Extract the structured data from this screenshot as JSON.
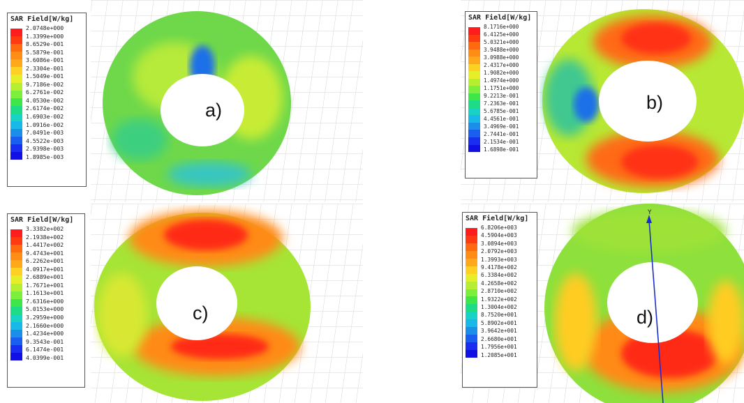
{
  "colors": {
    "scale": [
      "#ff1c1c",
      "#ff3a10",
      "#ff6a10",
      "#ff8c14",
      "#ffa81c",
      "#ffd024",
      "#e6ee2a",
      "#b6ee32",
      "#7cee3c",
      "#3ee64a",
      "#1edc86",
      "#18d2c4",
      "#18b8e8",
      "#1a8ee8",
      "#1a5ef0",
      "#1a2ef2",
      "#1010e4"
    ]
  },
  "panels": [
    {
      "label": "a)",
      "legend_title": "SAR Field[W/kg]",
      "values": [
        "2.0748e+000",
        "1.3399e+000",
        "8.6529e-001",
        "5.5879e-001",
        "3.6086e-001",
        "2.3304e-001",
        "1.5049e-001",
        "9.7186e-002",
        "6.2761e-002",
        "4.0530e-002",
        "2.6174e-002",
        "1.6903e-002",
        "1.0916e-002",
        "7.0491e-003",
        "4.5522e-003",
        "2.9398e-003",
        "1.8985e-003"
      ]
    },
    {
      "label": "b)",
      "legend_title": "SAR Field[W/kg]",
      "values": [
        "8.1716e+000",
        "6.4125e+000",
        "5.0321e+000",
        "3.9488e+000",
        "3.0988e+000",
        "2.4317e+000",
        "1.9082e+000",
        "1.4974e+000",
        "1.1751e+000",
        "9.2213e-001",
        "7.2363e-001",
        "5.6785e-001",
        "4.4561e-001",
        "3.4969e-001",
        "2.7441e-001",
        "2.1534e-001",
        "1.6898e-001"
      ]
    },
    {
      "label": "c)",
      "legend_title": "SAR Field[W/kg]",
      "values": [
        "3.3382e+002",
        "2.1938e+002",
        "1.4417e+002",
        "9.4743e+001",
        "6.2262e+001",
        "4.0917e+001",
        "2.6889e+001",
        "1.7671e+001",
        "1.1613e+001",
        "7.6316e+000",
        "5.0153e+000",
        "3.2959e+000",
        "2.1660e+000",
        "1.4234e+000",
        "9.3543e-001",
        "6.1474e-001",
        "4.0399e-001"
      ]
    },
    {
      "label": "d)",
      "legend_title": "SAR Field[W/kg]",
      "axis_label": "Y",
      "values": [
        "6.8206e+003",
        "4.5904e+003",
        "3.0894e+003",
        "2.0792e+003",
        "1.3993e+003",
        "9.4178e+002",
        "6.3384e+002",
        "4.2658e+002",
        "2.8710e+002",
        "1.9322e+002",
        "1.3004e+002",
        "8.7520e+001",
        "5.8902e+001",
        "3.9642e+001",
        "2.6680e+001",
        "1.7956e+001",
        "1.2085e+001"
      ]
    }
  ]
}
